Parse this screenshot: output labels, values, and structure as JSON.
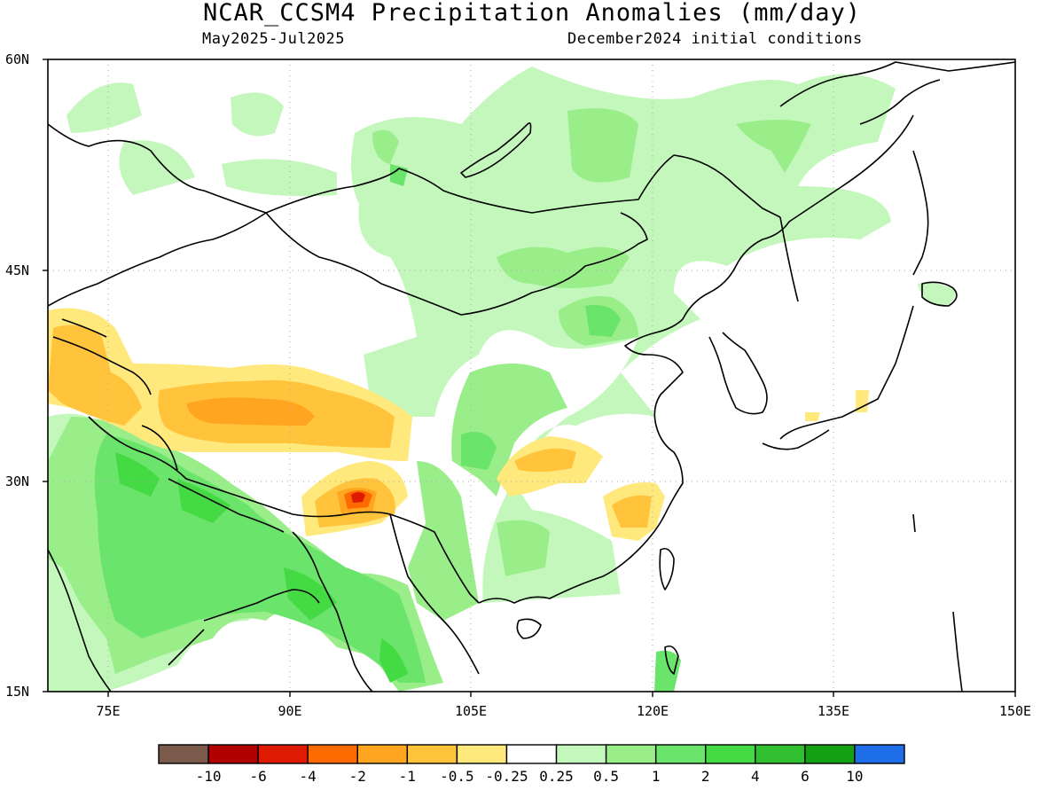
{
  "header": {
    "title": "NCAR_CCSM4 Precipitation Anomalies (mm/day)",
    "period": "May2025-Jul2025",
    "init": "December2024 initial conditions"
  },
  "map": {
    "extent": {
      "lon": [
        70,
        150
      ],
      "lat": [
        15,
        60
      ]
    },
    "lat_labels": [
      "60N",
      "45N",
      "30N",
      "15N"
    ],
    "lon_labels": [
      "75E",
      "90E",
      "105E",
      "120E",
      "135E",
      "150E"
    ],
    "grid": true
  },
  "colorbar": {
    "colors": [
      "#7a5a4a",
      "#b00000",
      "#de1a00",
      "#ff6a00",
      "#ffa520",
      "#ffc43c",
      "#ffe87c",
      "#ffffff",
      "#c4f7bc",
      "#99ee8a",
      "#6ae46a",
      "#44da44",
      "#30c030",
      "#13a013",
      "#1e6eea"
    ],
    "labels": [
      "-10",
      "-6",
      "-4",
      "-2",
      "-1",
      "-0.5",
      "-0.25",
      "0.25",
      "0.5",
      "1",
      "2",
      "4",
      "6",
      "10"
    ]
  }
}
